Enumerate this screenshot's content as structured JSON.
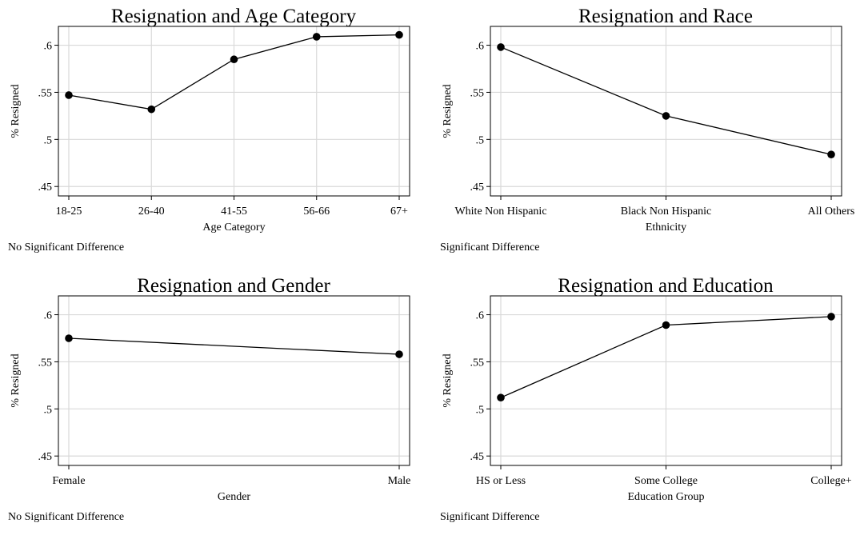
{
  "chart_data": [
    {
      "type": "line",
      "title": "Resignation and Age Category",
      "xlabel": "Age Category",
      "ylabel": "% Resigned",
      "note": "No Significant Difference",
      "categories": [
        "18-25",
        "26-40",
        "41-55",
        "56-66",
        "67+"
      ],
      "values": [
        0.547,
        0.532,
        0.585,
        0.609,
        0.611
      ],
      "ylim": [
        0.44,
        0.62
      ],
      "yticks": [
        0.45,
        0.5,
        0.55,
        0.6
      ],
      "ytick_labels": [
        ".45",
        ".5",
        ".55",
        ".6"
      ],
      "grid": true,
      "color": "#000000"
    },
    {
      "type": "line",
      "title": "Resignation and Race",
      "xlabel": "Ethnicity",
      "ylabel": "% Resigned",
      "note": "Significant Difference",
      "categories": [
        "White Non Hispanic",
        "Black Non Hispanic",
        "All Others"
      ],
      "values": [
        0.598,
        0.525,
        0.484
      ],
      "ylim": [
        0.44,
        0.62
      ],
      "yticks": [
        0.45,
        0.5,
        0.55,
        0.6
      ],
      "ytick_labels": [
        ".45",
        ".5",
        ".55",
        ".6"
      ],
      "grid": true,
      "color": "#000000"
    },
    {
      "type": "line",
      "title": "Resignation and Gender",
      "xlabel": "Gender",
      "ylabel": "% Resigned",
      "note": "No Significant Difference",
      "categories": [
        "Female",
        "Male"
      ],
      "values": [
        0.575,
        0.558
      ],
      "ylim": [
        0.44,
        0.62
      ],
      "yticks": [
        0.45,
        0.5,
        0.55,
        0.6
      ],
      "ytick_labels": [
        ".45",
        ".5",
        ".55",
        ".6"
      ],
      "grid": true,
      "color": "#000000"
    },
    {
      "type": "line",
      "title": "Resignation and Education",
      "xlabel": "Education Group",
      "ylabel": "% Resigned",
      "note": "Significant Difference",
      "categories": [
        "HS or Less",
        "Some College",
        "College+"
      ],
      "values": [
        0.512,
        0.589,
        0.598
      ],
      "ylim": [
        0.44,
        0.62
      ],
      "yticks": [
        0.45,
        0.5,
        0.55,
        0.6
      ],
      "ytick_labels": [
        ".45",
        ".5",
        ".55",
        ".6"
      ],
      "grid": true,
      "color": "#000000"
    }
  ]
}
